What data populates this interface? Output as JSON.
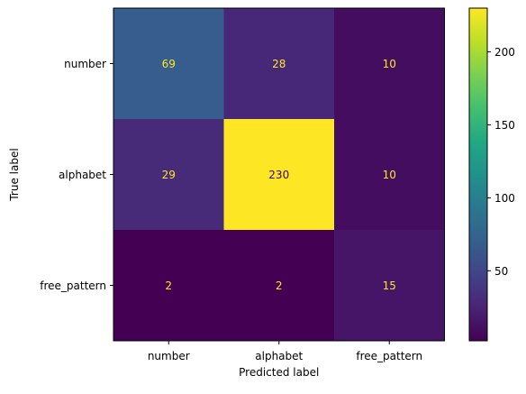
{
  "chart_data": {
    "type": "heatmap",
    "title": "",
    "xlabel": "Predicted label",
    "ylabel": "True label",
    "x_categories": [
      "number",
      "alphabet",
      "free_pattern"
    ],
    "y_categories": [
      "number",
      "alphabet",
      "free_pattern"
    ],
    "matrix": [
      [
        69,
        28,
        10
      ],
      [
        29,
        230,
        10
      ],
      [
        2,
        2,
        15
      ]
    ],
    "colormap": "viridis",
    "color_range": [
      2,
      230
    ],
    "colorbar_ticks": [
      50,
      100,
      150,
      200
    ],
    "text_color_light": "#fde725",
    "grid": false
  }
}
